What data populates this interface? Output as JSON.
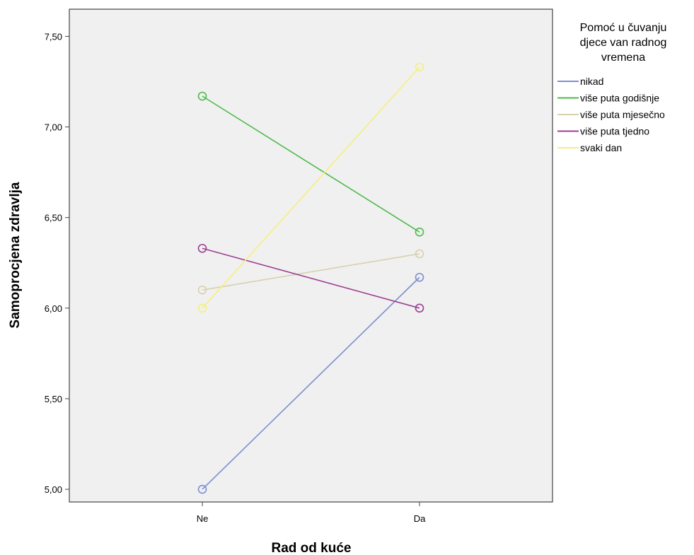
{
  "chart_data": {
    "type": "line",
    "categories": [
      "Ne",
      "Da"
    ],
    "xlabel": "Rad od kuće",
    "ylabel": "Samoprocjena zdravlja",
    "ylim": [
      4.93,
      7.65
    ],
    "yticks": [
      5.0,
      5.5,
      6.0,
      6.5,
      7.0,
      7.5
    ],
    "ytick_labels": [
      "5,00",
      "5,50",
      "6,00",
      "6,50",
      "7,00",
      "7,50"
    ],
    "grid": false,
    "legend_title_lines": [
      "Pomoć u čuvanju",
      "djece van radnog",
      "vremena"
    ],
    "legend_position": "right",
    "marker": "open-circle",
    "plot_background": "#f0f0f0",
    "series": [
      {
        "name": "nikad",
        "values": [
          5.0,
          6.17
        ],
        "color": "#7b8fd0"
      },
      {
        "name": "više puta godišnje",
        "values": [
          7.17,
          6.42
        ],
        "color": "#4cbb4c"
      },
      {
        "name": "više puta mjesečno",
        "values": [
          6.1,
          6.3
        ],
        "color": "#d8d0ae"
      },
      {
        "name": "više puta tjedno",
        "values": [
          6.33,
          6.0
        ],
        "color": "#9c3f92"
      },
      {
        "name": "svaki dan",
        "values": [
          6.0,
          7.33
        ],
        "color": "#f5f07c"
      }
    ]
  }
}
